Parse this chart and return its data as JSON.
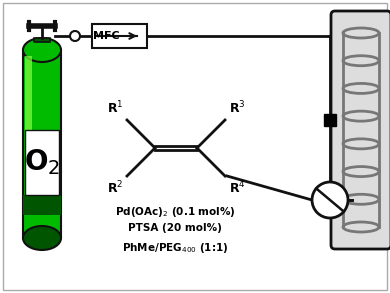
{
  "background_color": "#ffffff",
  "line_color": "#111111",
  "green_dark": "#005500",
  "green_mid": "#00bb00",
  "green_light": "#00dd00",
  "green_highlight": "#88ff44",
  "mfc_label": "MFC",
  "figsize": [
    3.9,
    2.93
  ],
  "dpi": 100
}
